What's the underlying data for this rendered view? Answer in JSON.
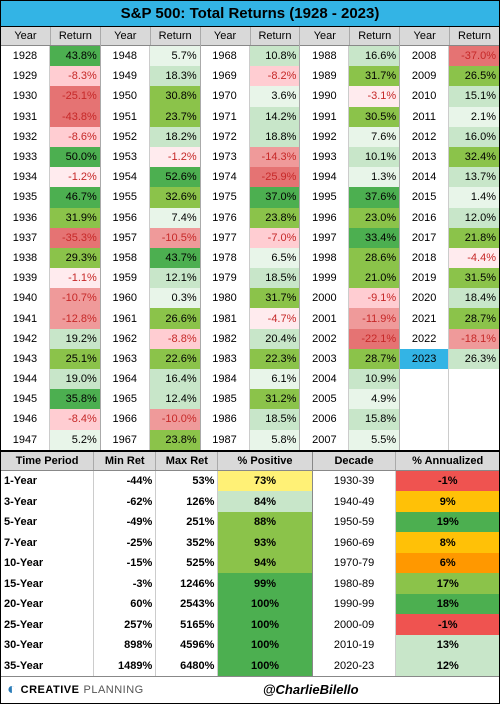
{
  "title": "S&P 500: Total Returns (1928 - 2023)",
  "headers": {
    "year": "Year",
    "return": "Return"
  },
  "colors": {
    "deep_green": "#4caf50",
    "green": "#8bc34a",
    "light_green": "#c8e6c9",
    "pale_green": "#e8f5e9",
    "deep_red": "#e57373",
    "red": "#ef9a9a",
    "light_red": "#ffcdd2",
    "pale_red": "#ffebee",
    "highlight_blue": "#33b4e5",
    "yellow": "#fff176",
    "amber": "#ffc107",
    "orange": "#ff9800",
    "dred": "#ef5350"
  },
  "columns": [
    [
      {
        "y": "1928",
        "r": "43.8%",
        "c": "deep_green"
      },
      {
        "y": "1929",
        "r": "-8.3%",
        "c": "light_red"
      },
      {
        "y": "1930",
        "r": "-25.1%",
        "c": "deep_red"
      },
      {
        "y": "1931",
        "r": "-43.8%",
        "c": "deep_red"
      },
      {
        "y": "1932",
        "r": "-8.6%",
        "c": "light_red"
      },
      {
        "y": "1933",
        "r": "50.0%",
        "c": "deep_green"
      },
      {
        "y": "1934",
        "r": "-1.2%",
        "c": "pale_red"
      },
      {
        "y": "1935",
        "r": "46.7%",
        "c": "deep_green"
      },
      {
        "y": "1936",
        "r": "31.9%",
        "c": "green"
      },
      {
        "y": "1937",
        "r": "-35.3%",
        "c": "deep_red"
      },
      {
        "y": "1938",
        "r": "29.3%",
        "c": "green"
      },
      {
        "y": "1939",
        "r": "-1.1%",
        "c": "pale_red"
      },
      {
        "y": "1940",
        "r": "-10.7%",
        "c": "red"
      },
      {
        "y": "1941",
        "r": "-12.8%",
        "c": "red"
      },
      {
        "y": "1942",
        "r": "19.2%",
        "c": "light_green"
      },
      {
        "y": "1943",
        "r": "25.1%",
        "c": "green"
      },
      {
        "y": "1944",
        "r": "19.0%",
        "c": "light_green"
      },
      {
        "y": "1945",
        "r": "35.8%",
        "c": "deep_green"
      },
      {
        "y": "1946",
        "r": "-8.4%",
        "c": "light_red"
      },
      {
        "y": "1947",
        "r": "5.2%",
        "c": "pale_green"
      }
    ],
    [
      {
        "y": "1948",
        "r": "5.7%",
        "c": "pale_green"
      },
      {
        "y": "1949",
        "r": "18.3%",
        "c": "light_green"
      },
      {
        "y": "1950",
        "r": "30.8%",
        "c": "green"
      },
      {
        "y": "1951",
        "r": "23.7%",
        "c": "green"
      },
      {
        "y": "1952",
        "r": "18.2%",
        "c": "light_green"
      },
      {
        "y": "1953",
        "r": "-1.2%",
        "c": "pale_red"
      },
      {
        "y": "1954",
        "r": "52.6%",
        "c": "deep_green"
      },
      {
        "y": "1955",
        "r": "32.6%",
        "c": "green"
      },
      {
        "y": "1956",
        "r": "7.4%",
        "c": "pale_green"
      },
      {
        "y": "1957",
        "r": "-10.5%",
        "c": "red"
      },
      {
        "y": "1958",
        "r": "43.7%",
        "c": "deep_green"
      },
      {
        "y": "1959",
        "r": "12.1%",
        "c": "light_green"
      },
      {
        "y": "1960",
        "r": "0.3%",
        "c": "pale_green"
      },
      {
        "y": "1961",
        "r": "26.6%",
        "c": "green"
      },
      {
        "y": "1962",
        "r": "-8.8%",
        "c": "light_red"
      },
      {
        "y": "1963",
        "r": "22.6%",
        "c": "green"
      },
      {
        "y": "1964",
        "r": "16.4%",
        "c": "light_green"
      },
      {
        "y": "1965",
        "r": "12.4%",
        "c": "light_green"
      },
      {
        "y": "1966",
        "r": "-10.0%",
        "c": "red"
      },
      {
        "y": "1967",
        "r": "23.8%",
        "c": "green"
      }
    ],
    [
      {
        "y": "1968",
        "r": "10.8%",
        "c": "light_green"
      },
      {
        "y": "1969",
        "r": "-8.2%",
        "c": "light_red"
      },
      {
        "y": "1970",
        "r": "3.6%",
        "c": "pale_green"
      },
      {
        "y": "1971",
        "r": "14.2%",
        "c": "light_green"
      },
      {
        "y": "1972",
        "r": "18.8%",
        "c": "light_green"
      },
      {
        "y": "1973",
        "r": "-14.3%",
        "c": "red"
      },
      {
        "y": "1974",
        "r": "-25.9%",
        "c": "deep_red"
      },
      {
        "y": "1975",
        "r": "37.0%",
        "c": "deep_green"
      },
      {
        "y": "1976",
        "r": "23.8%",
        "c": "green"
      },
      {
        "y": "1977",
        "r": "-7.0%",
        "c": "light_red"
      },
      {
        "y": "1978",
        "r": "6.5%",
        "c": "pale_green"
      },
      {
        "y": "1979",
        "r": "18.5%",
        "c": "light_green"
      },
      {
        "y": "1980",
        "r": "31.7%",
        "c": "green"
      },
      {
        "y": "1981",
        "r": "-4.7%",
        "c": "pale_red"
      },
      {
        "y": "1982",
        "r": "20.4%",
        "c": "light_green"
      },
      {
        "y": "1983",
        "r": "22.3%",
        "c": "green"
      },
      {
        "y": "1984",
        "r": "6.1%",
        "c": "pale_green"
      },
      {
        "y": "1985",
        "r": "31.2%",
        "c": "green"
      },
      {
        "y": "1986",
        "r": "18.5%",
        "c": "light_green"
      },
      {
        "y": "1987",
        "r": "5.8%",
        "c": "pale_green"
      }
    ],
    [
      {
        "y": "1988",
        "r": "16.6%",
        "c": "light_green"
      },
      {
        "y": "1989",
        "r": "31.7%",
        "c": "green"
      },
      {
        "y": "1990",
        "r": "-3.1%",
        "c": "pale_red"
      },
      {
        "y": "1991",
        "r": "30.5%",
        "c": "green"
      },
      {
        "y": "1992",
        "r": "7.6%",
        "c": "pale_green"
      },
      {
        "y": "1993",
        "r": "10.1%",
        "c": "light_green"
      },
      {
        "y": "1994",
        "r": "1.3%",
        "c": "pale_green"
      },
      {
        "y": "1995",
        "r": "37.6%",
        "c": "deep_green"
      },
      {
        "y": "1996",
        "r": "23.0%",
        "c": "green"
      },
      {
        "y": "1997",
        "r": "33.4%",
        "c": "deep_green"
      },
      {
        "y": "1998",
        "r": "28.6%",
        "c": "green"
      },
      {
        "y": "1999",
        "r": "21.0%",
        "c": "green"
      },
      {
        "y": "2000",
        "r": "-9.1%",
        "c": "light_red"
      },
      {
        "y": "2001",
        "r": "-11.9%",
        "c": "red"
      },
      {
        "y": "2002",
        "r": "-22.1%",
        "c": "deep_red"
      },
      {
        "y": "2003",
        "r": "28.7%",
        "c": "green"
      },
      {
        "y": "2004",
        "r": "10.9%",
        "c": "light_green"
      },
      {
        "y": "2005",
        "r": "4.9%",
        "c": "pale_green"
      },
      {
        "y": "2006",
        "r": "15.8%",
        "c": "light_green"
      },
      {
        "y": "2007",
        "r": "5.5%",
        "c": "pale_green"
      }
    ],
    [
      {
        "y": "2008",
        "r": "-37.0%",
        "c": "deep_red"
      },
      {
        "y": "2009",
        "r": "26.5%",
        "c": "green"
      },
      {
        "y": "2010",
        "r": "15.1%",
        "c": "light_green"
      },
      {
        "y": "2011",
        "r": "2.1%",
        "c": "pale_green"
      },
      {
        "y": "2012",
        "r": "16.0%",
        "c": "light_green"
      },
      {
        "y": "2013",
        "r": "32.4%",
        "c": "green"
      },
      {
        "y": "2014",
        "r": "13.7%",
        "c": "light_green"
      },
      {
        "y": "2015",
        "r": "1.4%",
        "c": "pale_green"
      },
      {
        "y": "2016",
        "r": "12.0%",
        "c": "light_green"
      },
      {
        "y": "2017",
        "r": "21.8%",
        "c": "green"
      },
      {
        "y": "2018",
        "r": "-4.4%",
        "c": "pale_red"
      },
      {
        "y": "2019",
        "r": "31.5%",
        "c": "green"
      },
      {
        "y": "2020",
        "r": "18.4%",
        "c": "light_green"
      },
      {
        "y": "2021",
        "r": "28.7%",
        "c": "green"
      },
      {
        "y": "2022",
        "r": "-18.1%",
        "c": "red"
      },
      {
        "y": "2023",
        "r": "26.3%",
        "c": "light_green",
        "hy": "highlight_blue"
      },
      {
        "y": "",
        "r": "",
        "c": ""
      },
      {
        "y": "",
        "r": "",
        "c": ""
      },
      {
        "y": "",
        "r": "",
        "c": ""
      },
      {
        "y": "",
        "r": "",
        "c": ""
      }
    ]
  ],
  "summary_left": {
    "headers": [
      "Time Period",
      "Min Ret",
      "Max Ret",
      "% Positive"
    ],
    "widths": [
      "30%",
      "20%",
      "20%",
      "30%"
    ],
    "rows": [
      {
        "p": "1-Year",
        "min": "-44%",
        "max": "53%",
        "pos": "73%",
        "pc": "yellow"
      },
      {
        "p": "3-Year",
        "min": "-62%",
        "max": "126%",
        "pos": "84%",
        "pc": "light_green"
      },
      {
        "p": "5-Year",
        "min": "-49%",
        "max": "251%",
        "pos": "88%",
        "pc": "green"
      },
      {
        "p": "7-Year",
        "min": "-25%",
        "max": "352%",
        "pos": "93%",
        "pc": "green"
      },
      {
        "p": "10-Year",
        "min": "-15%",
        "max": "525%",
        "pos": "94%",
        "pc": "green"
      },
      {
        "p": "15-Year",
        "min": "-3%",
        "max": "1246%",
        "pos": "99%",
        "pc": "deep_green"
      },
      {
        "p": "20-Year",
        "min": "60%",
        "max": "2543%",
        "pos": "100%",
        "pc": "deep_green"
      },
      {
        "p": "25-Year",
        "min": "257%",
        "max": "5165%",
        "pos": "100%",
        "pc": "deep_green"
      },
      {
        "p": "30-Year",
        "min": "898%",
        "max": "4596%",
        "pos": "100%",
        "pc": "deep_green"
      },
      {
        "p": "35-Year",
        "min": "1489%",
        "max": "6480%",
        "pos": "100%",
        "pc": "deep_green"
      }
    ]
  },
  "summary_right": {
    "headers": [
      "Decade",
      "% Annualized"
    ],
    "widths": [
      "45%",
      "55%"
    ],
    "rows": [
      {
        "d": "1930-39",
        "a": "-1%",
        "ac": "dred"
      },
      {
        "d": "1940-49",
        "a": "9%",
        "ac": "amber"
      },
      {
        "d": "1950-59",
        "a": "19%",
        "ac": "deep_green"
      },
      {
        "d": "1960-69",
        "a": "8%",
        "ac": "amber"
      },
      {
        "d": "1970-79",
        "a": "6%",
        "ac": "orange"
      },
      {
        "d": "1980-89",
        "a": "17%",
        "ac": "green"
      },
      {
        "d": "1990-99",
        "a": "18%",
        "ac": "deep_green"
      },
      {
        "d": "2000-09",
        "a": "-1%",
        "ac": "dred"
      },
      {
        "d": "2010-19",
        "a": "13%",
        "ac": "light_green"
      },
      {
        "d": "2020-23",
        "a": "12%",
        "ac": "light_green"
      }
    ]
  },
  "footer": {
    "logo1": "CREATIVE",
    "logo2": "PLANNING",
    "handle": "@CharlieBilello"
  }
}
